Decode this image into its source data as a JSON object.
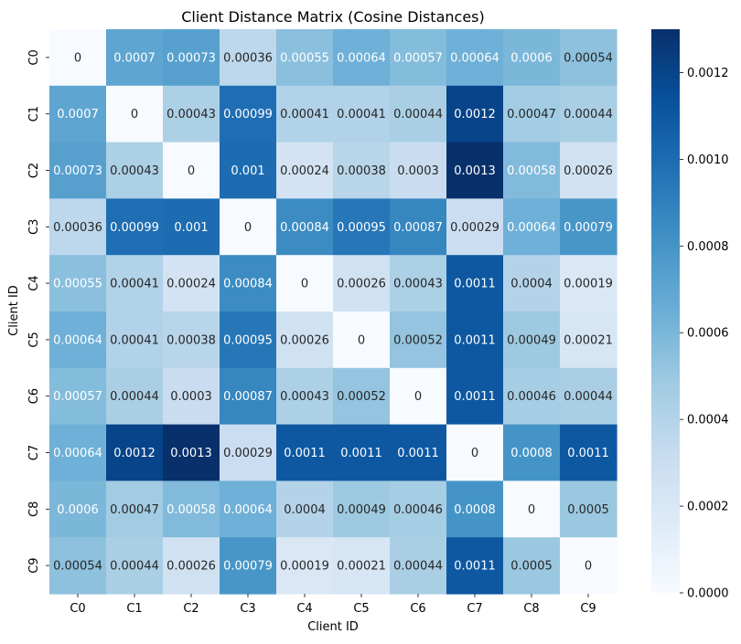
{
  "chart_data": {
    "type": "heatmap",
    "title": "Client Distance Matrix (Cosine Distances)",
    "xlabel": "Client ID",
    "ylabel": "Client ID",
    "x_categories": [
      "C0",
      "C1",
      "C2",
      "C3",
      "C4",
      "C5",
      "C6",
      "C7",
      "C8",
      "C9"
    ],
    "y_categories": [
      "C0",
      "C1",
      "C2",
      "C3",
      "C4",
      "C5",
      "C6",
      "C7",
      "C8",
      "C9"
    ],
    "values": [
      [
        0,
        0.0007,
        0.00073,
        0.00036,
        0.00055,
        0.00064,
        0.00057,
        0.00064,
        0.0006,
        0.00054
      ],
      [
        0.0007,
        0,
        0.00043,
        0.00099,
        0.00041,
        0.00041,
        0.00044,
        0.0012,
        0.00047,
        0.00044
      ],
      [
        0.00073,
        0.00043,
        0,
        0.001,
        0.00024,
        0.00038,
        0.0003,
        0.0013,
        0.00058,
        0.00026
      ],
      [
        0.00036,
        0.00099,
        0.001,
        0,
        0.00084,
        0.00095,
        0.00087,
        0.00029,
        0.00064,
        0.00079
      ],
      [
        0.00055,
        0.00041,
        0.00024,
        0.00084,
        0,
        0.00026,
        0.00043,
        0.0011,
        0.0004,
        0.00019
      ],
      [
        0.00064,
        0.00041,
        0.00038,
        0.00095,
        0.00026,
        0,
        0.00052,
        0.0011,
        0.00049,
        0.00021
      ],
      [
        0.00057,
        0.00044,
        0.0003,
        0.00087,
        0.00043,
        0.00052,
        0,
        0.0011,
        0.00046,
        0.00044
      ],
      [
        0.00064,
        0.0012,
        0.0013,
        0.00029,
        0.0011,
        0.0011,
        0.0011,
        0,
        0.0008,
        0.0011
      ],
      [
        0.0006,
        0.00047,
        0.00058,
        0.00064,
        0.0004,
        0.00049,
        0.00046,
        0.0008,
        0,
        0.0005
      ],
      [
        0.00054,
        0.00044,
        0.00026,
        0.00079,
        0.00019,
        0.00021,
        0.00044,
        0.0011,
        0.0005,
        0
      ]
    ],
    "value_labels": [
      [
        "0",
        "0.0007",
        "0.00073",
        "0.00036",
        "0.00055",
        "0.00064",
        "0.00057",
        "0.00064",
        "0.0006",
        "0.00054"
      ],
      [
        "0.0007",
        "0",
        "0.00043",
        "0.00099",
        "0.00041",
        "0.00041",
        "0.00044",
        "0.0012",
        "0.00047",
        "0.00044"
      ],
      [
        "0.00073",
        "0.00043",
        "0",
        "0.001",
        "0.00024",
        "0.00038",
        "0.0003",
        "0.0013",
        "0.00058",
        "0.00026"
      ],
      [
        "0.00036",
        "0.00099",
        "0.001",
        "0",
        "0.00084",
        "0.00095",
        "0.00087",
        "0.00029",
        "0.00064",
        "0.00079"
      ],
      [
        "0.00055",
        "0.00041",
        "0.00024",
        "0.00084",
        "0",
        "0.00026",
        "0.00043",
        "0.0011",
        "0.0004",
        "0.00019"
      ],
      [
        "0.00064",
        "0.00041",
        "0.00038",
        "0.00095",
        "0.00026",
        "0",
        "0.00052",
        "0.0011",
        "0.00049",
        "0.00021"
      ],
      [
        "0.00057",
        "0.00044",
        "0.0003",
        "0.00087",
        "0.00043",
        "0.00052",
        "0",
        "0.0011",
        "0.00046",
        "0.00044"
      ],
      [
        "0.00064",
        "0.0012",
        "0.0013",
        "0.00029",
        "0.0011",
        "0.0011",
        "0.0011",
        "0",
        "0.0008",
        "0.0011"
      ],
      [
        "0.0006",
        "0.00047",
        "0.00058",
        "0.00064",
        "0.0004",
        "0.00049",
        "0.00046",
        "0.0008",
        "0",
        "0.0005"
      ],
      [
        "0.00054",
        "0.00044",
        "0.00026",
        "0.00079",
        "0.00019",
        "0.00021",
        "0.00044",
        "0.0011",
        "0.0005",
        "0"
      ]
    ],
    "color_scale": {
      "name": "Blues",
      "min": 0,
      "max": 0.0013,
      "stops": [
        "#f7fbff",
        "#deebf7",
        "#c6dbef",
        "#9ecae1",
        "#6baed6",
        "#4292c6",
        "#2171b5",
        "#08519c",
        "#08306b"
      ]
    },
    "colorbar_ticks": [
      "0.0000",
      "0.0002",
      "0.0004",
      "0.0006",
      "0.0008",
      "0.0010",
      "0.0012"
    ],
    "colorbar_tick_values": [
      0,
      0.0002,
      0.0004,
      0.0006,
      0.0008,
      0.001,
      0.0012
    ],
    "annotation_colors": {
      "dark_text": "#262626",
      "light_text": "#ffffff"
    },
    "grid": false,
    "legend": "colorbar-right"
  }
}
